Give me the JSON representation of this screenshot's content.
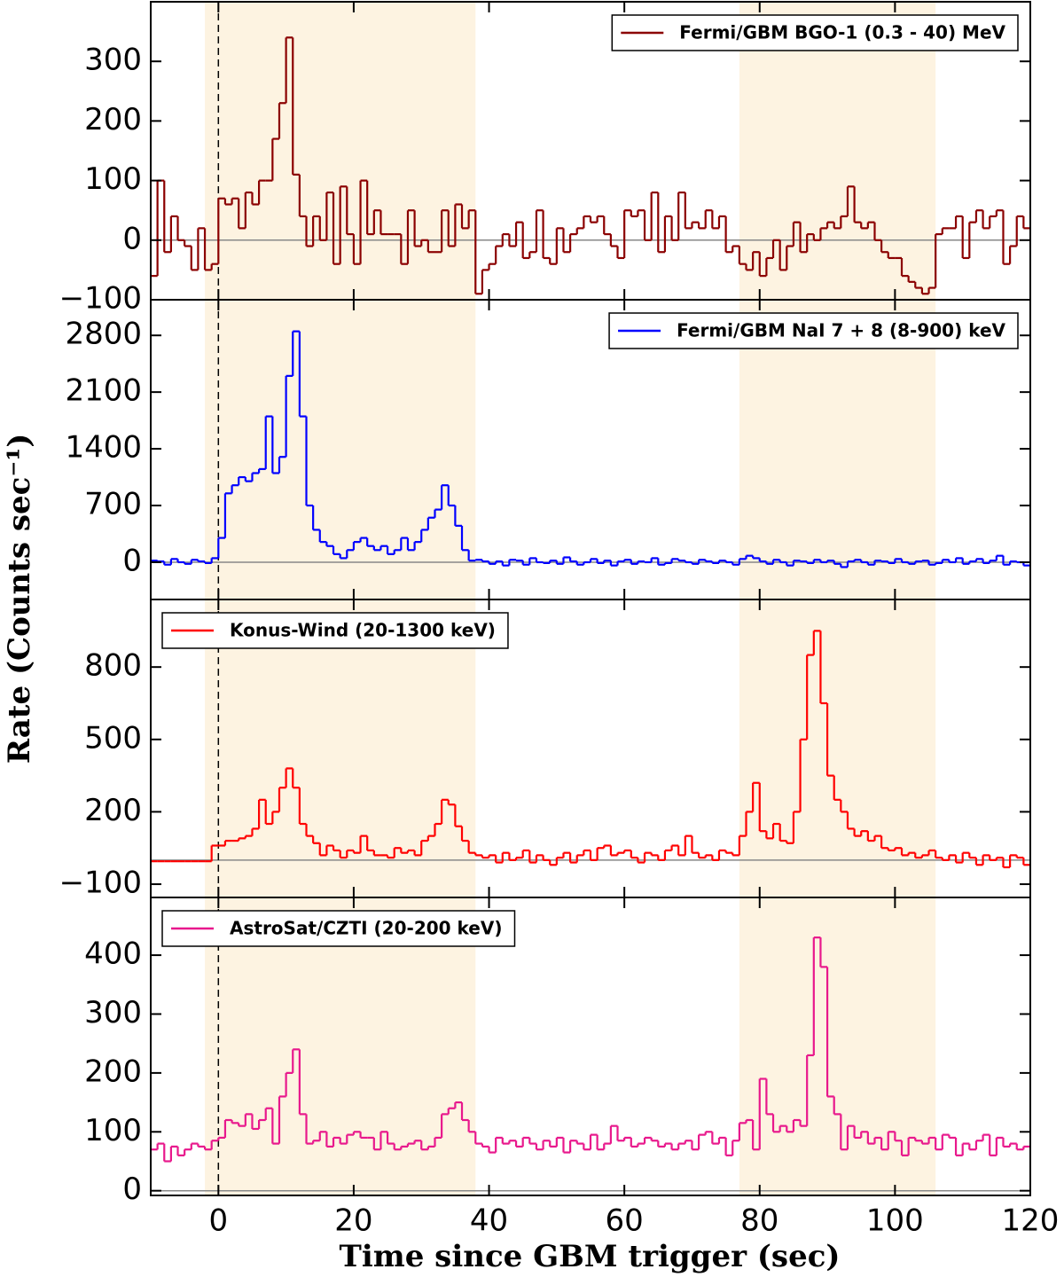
{
  "xlabel": "Time since GBM trigger (sec)",
  "ylabel": "Rate (Counts sec⁻¹)",
  "shaded_intervals": [
    [
      -2,
      38
    ],
    [
      77,
      106
    ]
  ],
  "trigger_line": 0,
  "chart_data": [
    {
      "type": "line",
      "drawstyle": "steps-post",
      "legend": "upper right",
      "xlim": [
        -10,
        120
      ],
      "xticks": [
        0,
        20,
        40,
        60,
        80,
        100,
        120
      ],
      "ylim": [
        -100,
        400
      ],
      "yticks": [
        {
          "value": -100,
          "label": "−100"
        },
        0,
        100,
        200,
        300
      ],
      "x": [
        -10,
        -9,
        -8,
        -7,
        -6,
        -5,
        -4,
        -3,
        -2,
        -1,
        0,
        1,
        2,
        3,
        4,
        5,
        6,
        7,
        8,
        9,
        10,
        11,
        12,
        13,
        14,
        15,
        16,
        17,
        18,
        19,
        20,
        21,
        22,
        23,
        24,
        25,
        26,
        27,
        28,
        29,
        30,
        31,
        32,
        33,
        34,
        35,
        36,
        37,
        38,
        39,
        40,
        41,
        42,
        43,
        44,
        45,
        46,
        47,
        48,
        49,
        50,
        51,
        52,
        53,
        54,
        55,
        56,
        57,
        58,
        59,
        60,
        61,
        62,
        63,
        64,
        65,
        66,
        67,
        68,
        69,
        70,
        71,
        72,
        73,
        74,
        75,
        76,
        77,
        78,
        79,
        80,
        81,
        82,
        83,
        84,
        85,
        86,
        87,
        88,
        89,
        90,
        91,
        92,
        93,
        94,
        95,
        96,
        97,
        98,
        99,
        100,
        101,
        102,
        103,
        104,
        105,
        106,
        107,
        108,
        109,
        110,
        111,
        112,
        113,
        114,
        115,
        116,
        117,
        118,
        119
      ],
      "series": [
        {
          "name": "Fermi/GBM BGO-1 (0.3 - 40) MeV",
          "color": "#8b0000",
          "values": [
            -60,
            100,
            -20,
            40,
            0,
            -10,
            -50,
            20,
            -50,
            -40,
            70,
            60,
            70,
            20,
            80,
            60,
            100,
            100,
            170,
            230,
            340,
            110,
            40,
            -10,
            40,
            0,
            80,
            -40,
            90,
            10,
            -40,
            100,
            10,
            50,
            10,
            10,
            10,
            -40,
            50,
            -10,
            0,
            -20,
            -20,
            50,
            -10,
            60,
            20,
            50,
            -90,
            -50,
            -40,
            -10,
            10,
            -10,
            30,
            -30,
            -20,
            50,
            -30,
            -40,
            20,
            -20,
            10,
            20,
            40,
            30,
            40,
            10,
            -10,
            -30,
            50,
            40,
            50,
            0,
            80,
            -20,
            40,
            0,
            80,
            20,
            30,
            20,
            50,
            20,
            40,
            -20,
            -10,
            -40,
            -50,
            -20,
            -60,
            -30,
            0,
            -50,
            -10,
            30,
            -20,
            10,
            0,
            20,
            30,
            20,
            40,
            90,
            30,
            20,
            30,
            0,
            -20,
            -30,
            -30,
            -60,
            -70,
            -80,
            -90,
            -80,
            10,
            20,
            20,
            40,
            -30,
            30,
            50,
            20,
            40,
            50,
            -40,
            -10,
            40,
            20
          ]
        }
      ]
    },
    {
      "type": "line",
      "drawstyle": "steps-post",
      "legend": "upper right",
      "xlim": [
        -10,
        120
      ],
      "xticks": [
        0,
        20,
        40,
        60,
        80,
        100,
        120
      ],
      "ylim": [
        -460,
        3240
      ],
      "yticks": [
        0,
        700,
        1400,
        2100,
        2800
      ],
      "x": [
        -10,
        -9,
        -8,
        -7,
        -6,
        -5,
        -4,
        -3,
        -2,
        -1,
        0,
        1,
        2,
        3,
        4,
        5,
        6,
        7,
        8,
        9,
        10,
        11,
        12,
        13,
        14,
        15,
        16,
        17,
        18,
        19,
        20,
        21,
        22,
        23,
        24,
        25,
        26,
        27,
        28,
        29,
        30,
        31,
        32,
        33,
        34,
        35,
        36,
        37,
        38,
        39,
        40,
        41,
        42,
        43,
        44,
        45,
        46,
        47,
        48,
        49,
        50,
        51,
        52,
        53,
        54,
        55,
        56,
        57,
        58,
        59,
        60,
        61,
        62,
        63,
        64,
        65,
        66,
        67,
        68,
        69,
        70,
        71,
        72,
        73,
        74,
        75,
        76,
        77,
        78,
        79,
        80,
        81,
        82,
        83,
        84,
        85,
        86,
        87,
        88,
        89,
        90,
        91,
        92,
        93,
        94,
        95,
        96,
        97,
        98,
        99,
        100,
        101,
        102,
        103,
        104,
        105,
        106,
        107,
        108,
        109,
        110,
        111,
        112,
        113,
        114,
        115,
        116,
        117,
        118,
        119
      ],
      "series": [
        {
          "name": "Fermi/GBM NaI 7 + 8 (8-900) keV",
          "color": "#0000ff",
          "values": [
            20,
            10,
            -30,
            40,
            0,
            -20,
            30,
            10,
            -10,
            50,
            300,
            850,
            950,
            1050,
            1000,
            1100,
            1150,
            1800,
            1100,
            1300,
            2300,
            2850,
            1800,
            700,
            400,
            250,
            200,
            100,
            50,
            150,
            250,
            300,
            200,
            150,
            200,
            100,
            150,
            300,
            150,
            250,
            400,
            550,
            650,
            950,
            700,
            450,
            150,
            20,
            30,
            10,
            -20,
            10,
            -40,
            30,
            20,
            -30,
            50,
            0,
            -10,
            20,
            -20,
            60,
            10,
            -30,
            0,
            40,
            -10,
            20,
            -40,
            10,
            30,
            -20,
            10,
            0,
            50,
            -30,
            -10,
            40,
            20,
            0,
            -20,
            30,
            10,
            -10,
            20,
            0,
            -30,
            40,
            80,
            50,
            10,
            -20,
            30,
            0,
            -40,
            20,
            10,
            -10,
            30,
            0,
            20,
            -20,
            -60,
            10,
            30,
            0,
            -30,
            20,
            10,
            -10,
            40,
            0,
            -20,
            10,
            20,
            -30,
            -10,
            30,
            0,
            50,
            -20,
            10,
            40,
            -10,
            20,
            80,
            -30,
            10,
            0,
            -40
          ]
        }
      ]
    },
    {
      "type": "line",
      "drawstyle": "steps-post",
      "legend": "upper left",
      "xlim": [
        -10,
        120
      ],
      "xticks": [
        0,
        20,
        40,
        60,
        80,
        100,
        120
      ],
      "ylim": [
        -155,
        1080
      ],
      "yticks": [
        {
          "value": -100,
          "label": "−100"
        },
        200,
        500,
        800
      ],
      "x": [
        -10,
        -9,
        -8,
        -7,
        -6,
        -5,
        -4,
        -3,
        -2,
        -1,
        0,
        1,
        2,
        3,
        4,
        5,
        6,
        7,
        8,
        9,
        10,
        11,
        12,
        13,
        14,
        15,
        16,
        17,
        18,
        19,
        20,
        21,
        22,
        23,
        24,
        25,
        26,
        27,
        28,
        29,
        30,
        31,
        32,
        33,
        34,
        35,
        36,
        37,
        38,
        39,
        40,
        41,
        42,
        43,
        44,
        45,
        46,
        47,
        48,
        49,
        50,
        51,
        52,
        53,
        54,
        55,
        56,
        57,
        58,
        59,
        60,
        61,
        62,
        63,
        64,
        65,
        66,
        67,
        68,
        69,
        70,
        71,
        72,
        73,
        74,
        75,
        76,
        77,
        78,
        79,
        80,
        81,
        82,
        83,
        84,
        85,
        86,
        87,
        88,
        89,
        90,
        91,
        92,
        93,
        94,
        95,
        96,
        97,
        98,
        99,
        100,
        101,
        102,
        103,
        104,
        105,
        106,
        107,
        108,
        109,
        110,
        111,
        112,
        113,
        114,
        115,
        116,
        117,
        118,
        119
      ],
      "series": [
        {
          "name": "Konus-Wind (20-1300 keV)",
          "color": "#ff0000",
          "values": [
            -5,
            -5,
            -5,
            -5,
            -5,
            -5,
            -5,
            -5,
            -5,
            60,
            60,
            80,
            80,
            90,
            100,
            130,
            250,
            150,
            200,
            300,
            380,
            300,
            150,
            100,
            70,
            20,
            60,
            40,
            10,
            40,
            30,
            100,
            40,
            20,
            20,
            10,
            50,
            30,
            40,
            20,
            80,
            100,
            150,
            250,
            230,
            140,
            80,
            30,
            20,
            10,
            20,
            -10,
            30,
            0,
            10,
            40,
            -10,
            20,
            0,
            -20,
            10,
            30,
            -10,
            20,
            40,
            0,
            50,
            60,
            20,
            30,
            40,
            10,
            -10,
            30,
            20,
            0,
            40,
            60,
            20,
            100,
            30,
            10,
            20,
            0,
            40,
            30,
            20,
            100,
            200,
            320,
            120,
            90,
            150,
            80,
            70,
            200,
            500,
            850,
            950,
            650,
            350,
            250,
            200,
            130,
            100,
            120,
            80,
            100,
            50,
            40,
            50,
            20,
            30,
            10,
            20,
            40,
            10,
            0,
            20,
            -10,
            30,
            10,
            -20,
            20,
            0,
            10,
            -30,
            20,
            10,
            -20
          ]
        }
      ]
    },
    {
      "type": "line",
      "drawstyle": "steps-post",
      "legend": "upper left",
      "xlim": [
        -10,
        120
      ],
      "xticks": [
        0,
        20,
        40,
        60,
        80,
        100,
        120
      ],
      "ylim": [
        -8,
        498
      ],
      "yticks": [
        0,
        100,
        200,
        300,
        400
      ],
      "x": [
        -10,
        -9,
        -8,
        -7,
        -6,
        -5,
        -4,
        -3,
        -2,
        -1,
        0,
        1,
        2,
        3,
        4,
        5,
        6,
        7,
        8,
        9,
        10,
        11,
        12,
        13,
        14,
        15,
        16,
        17,
        18,
        19,
        20,
        21,
        22,
        23,
        24,
        25,
        26,
        27,
        28,
        29,
        30,
        31,
        32,
        33,
        34,
        35,
        36,
        37,
        38,
        39,
        40,
        41,
        42,
        43,
        44,
        45,
        46,
        47,
        48,
        49,
        50,
        51,
        52,
        53,
        54,
        55,
        56,
        57,
        58,
        59,
        60,
        61,
        62,
        63,
        64,
        65,
        66,
        67,
        68,
        69,
        70,
        71,
        72,
        73,
        74,
        75,
        76,
        77,
        78,
        79,
        80,
        81,
        82,
        83,
        84,
        85,
        86,
        87,
        88,
        89,
        90,
        91,
        92,
        93,
        94,
        95,
        96,
        97,
        98,
        99,
        100,
        101,
        102,
        103,
        104,
        105,
        106,
        107,
        108,
        109,
        110,
        111,
        112,
        113,
        114,
        115,
        116,
        117,
        118,
        119
      ],
      "series": [
        {
          "name": "AstroSat/CZTI (20-200 keV)",
          "color": "#e8188c",
          "values": [
            70,
            80,
            50,
            75,
            60,
            70,
            80,
            75,
            70,
            85,
            90,
            120,
            115,
            110,
            130,
            105,
            120,
            140,
            80,
            160,
            200,
            240,
            130,
            80,
            85,
            100,
            75,
            90,
            80,
            95,
            100,
            90,
            90,
            70,
            100,
            80,
            70,
            75,
            80,
            85,
            70,
            75,
            90,
            130,
            140,
            150,
            120,
            100,
            80,
            75,
            65,
            90,
            80,
            85,
            75,
            90,
            80,
            70,
            85,
            75,
            90,
            65,
            85,
            80,
            70,
            95,
            70,
            80,
            110,
            85,
            90,
            75,
            80,
            90,
            85,
            75,
            80,
            70,
            80,
            85,
            70,
            95,
            100,
            80,
            90,
            60,
            85,
            115,
            120,
            70,
            190,
            130,
            100,
            110,
            100,
            120,
            110,
            230,
            430,
            380,
            160,
            130,
            70,
            110,
            90,
            100,
            80,
            90,
            70,
            100,
            85,
            60,
            90,
            85,
            80,
            90,
            70,
            95,
            90,
            60,
            80,
            70,
            85,
            95,
            60,
            90,
            75,
            80,
            70,
            75
          ]
        }
      ]
    }
  ]
}
